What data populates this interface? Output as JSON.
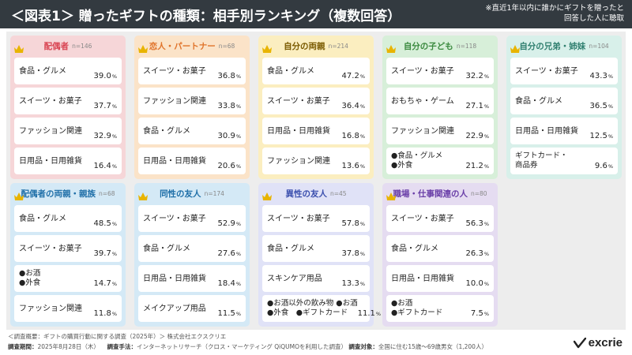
{
  "header": {
    "title": "＜図表1＞ 贈ったギフトの種類：相手別ランキング（複数回答）",
    "note_line1": "※直近1年以内に誰かにギフトを贈ったと",
    "note_line2": "回答した人に聴取"
  },
  "footer": {
    "survey_line": "＜調査概要：ギフトの購買行動に関する調査（2025年）＞ 株式会社エクスクリエ",
    "period_label": "調査期間：",
    "period_value": "2025年8月28日（木）",
    "method_label": "調査手法：",
    "method_value": "インターネットリサーチ（クロス・マーケティング QiQUMOを利用した調査）",
    "target_label": "調査対象：",
    "target_value": "全国に住む15歳～69歳男女（1,200人）"
  },
  "logo": {
    "text": "excrie",
    "icon": "excrie-check-icon"
  },
  "unit": "%",
  "colors": {
    "pink": "#f6d6d8",
    "pink_text": "#d94452",
    "orange": "#fbe3c8",
    "orange_text": "#e0732a",
    "yellow": "#fbeec0",
    "yellow_text": "#7a5a00",
    "green": "#d7efd9",
    "green_text": "#3b8a3f",
    "teal": "#d8f0ea",
    "teal_text": "#2f7f6f",
    "blue": "#d4e9f6",
    "blue_text": "#1f6fa8",
    "lavender": "#e0e2f7",
    "lavender_text": "#3b4fae",
    "purple": "#e5dcf1",
    "purple_text": "#6a3fa8",
    "crown": "#e8b400"
  },
  "chart_data": {
    "type": "table",
    "title": "＜図表1＞ 贈ったギフトの種類：相手別ランキング（複数回答）",
    "unit": "%",
    "groups": [
      {
        "name": "配偶者",
        "n": "n=146",
        "items": [
          {
            "label": [
              "食品・グルメ"
            ],
            "value": 39.0
          },
          {
            "label": [
              "スイーツ・お菓子"
            ],
            "value": 37.7
          },
          {
            "label": [
              "ファッション関連"
            ],
            "value": 32.9
          },
          {
            "label": [
              "日用品・日用雑貨"
            ],
            "value": 16.4
          }
        ]
      },
      {
        "name": "恋人・パートナー",
        "n": "n=68",
        "items": [
          {
            "label": [
              "スイーツ・お菓子"
            ],
            "value": 36.8
          },
          {
            "label": [
              "ファッション関連"
            ],
            "value": 33.8
          },
          {
            "label": [
              "食品・グルメ"
            ],
            "value": 30.9
          },
          {
            "label": [
              "日用品・日用雑貨"
            ],
            "value": 20.6
          }
        ]
      },
      {
        "name": "自分の両親",
        "n": "n=214",
        "items": [
          {
            "label": [
              "食品・グルメ"
            ],
            "value": 47.2
          },
          {
            "label": [
              "スイーツ・お菓子"
            ],
            "value": 36.4
          },
          {
            "label": [
              "日用品・日用雑貨"
            ],
            "value": 16.8
          },
          {
            "label": [
              "ファッション関連"
            ],
            "value": 13.6
          }
        ]
      },
      {
        "name": "自分の子ども",
        "n": "n=118",
        "items": [
          {
            "label": [
              "スイーツ・お菓子"
            ],
            "value": 32.2
          },
          {
            "label": [
              "おもちゃ・ゲーム"
            ],
            "value": 27.1
          },
          {
            "label": [
              "ファッション関連"
            ],
            "value": 22.9
          },
          {
            "label": [
              "●食品・グルメ",
              "●外食"
            ],
            "value": 21.2
          }
        ]
      },
      {
        "name": "自分の兄弟・姉妹",
        "n": "n=104",
        "items": [
          {
            "label": [
              "スイーツ・お菓子"
            ],
            "value": 43.3
          },
          {
            "label": [
              "食品・グルメ"
            ],
            "value": 36.5
          },
          {
            "label": [
              "日用品・日用雑貨"
            ],
            "value": 12.5
          },
          {
            "label": [
              "ギフトカード・",
              "商品券"
            ],
            "value": 9.6
          }
        ]
      },
      {
        "name": "配偶者の両親・親族",
        "n": "n=68",
        "items": [
          {
            "label": [
              "食品・グルメ"
            ],
            "value": 48.5
          },
          {
            "label": [
              "スイーツ・お菓子"
            ],
            "value": 39.7
          },
          {
            "label": [
              "●お酒",
              "●外食"
            ],
            "value": 14.7
          },
          {
            "label": [
              "ファッション関連"
            ],
            "value": 11.8
          }
        ]
      },
      {
        "name": "同性の友人",
        "n": "n=174",
        "items": [
          {
            "label": [
              "スイーツ・お菓子"
            ],
            "value": 52.9
          },
          {
            "label": [
              "食品・グルメ"
            ],
            "value": 27.6
          },
          {
            "label": [
              "日用品・日用雑貨"
            ],
            "value": 18.4
          },
          {
            "label": [
              "メイクアップ用品"
            ],
            "value": 11.5
          }
        ]
      },
      {
        "name": "異性の友人",
        "n": "n=45",
        "items": [
          {
            "label": [
              "スイーツ・お菓子"
            ],
            "value": 57.8
          },
          {
            "label": [
              "食品・グルメ"
            ],
            "value": 37.8
          },
          {
            "label": [
              "スキンケア用品"
            ],
            "value": 13.3
          },
          {
            "label": [
              "●お酒以外の飲み物 ●お酒",
              "●外食　●ギフトカード"
            ],
            "value": 11.1
          }
        ]
      },
      {
        "name": "職場・仕事関連の人",
        "n": "n=80",
        "items": [
          {
            "label": [
              "スイーツ・お菓子"
            ],
            "value": 56.3
          },
          {
            "label": [
              "食品・グルメ"
            ],
            "value": 26.3
          },
          {
            "label": [
              "日用品・日用雑貨"
            ],
            "value": 10.0
          },
          {
            "label": [
              "●お酒",
              "●ギフトカード"
            ],
            "value": 7.5
          }
        ]
      }
    ]
  }
}
